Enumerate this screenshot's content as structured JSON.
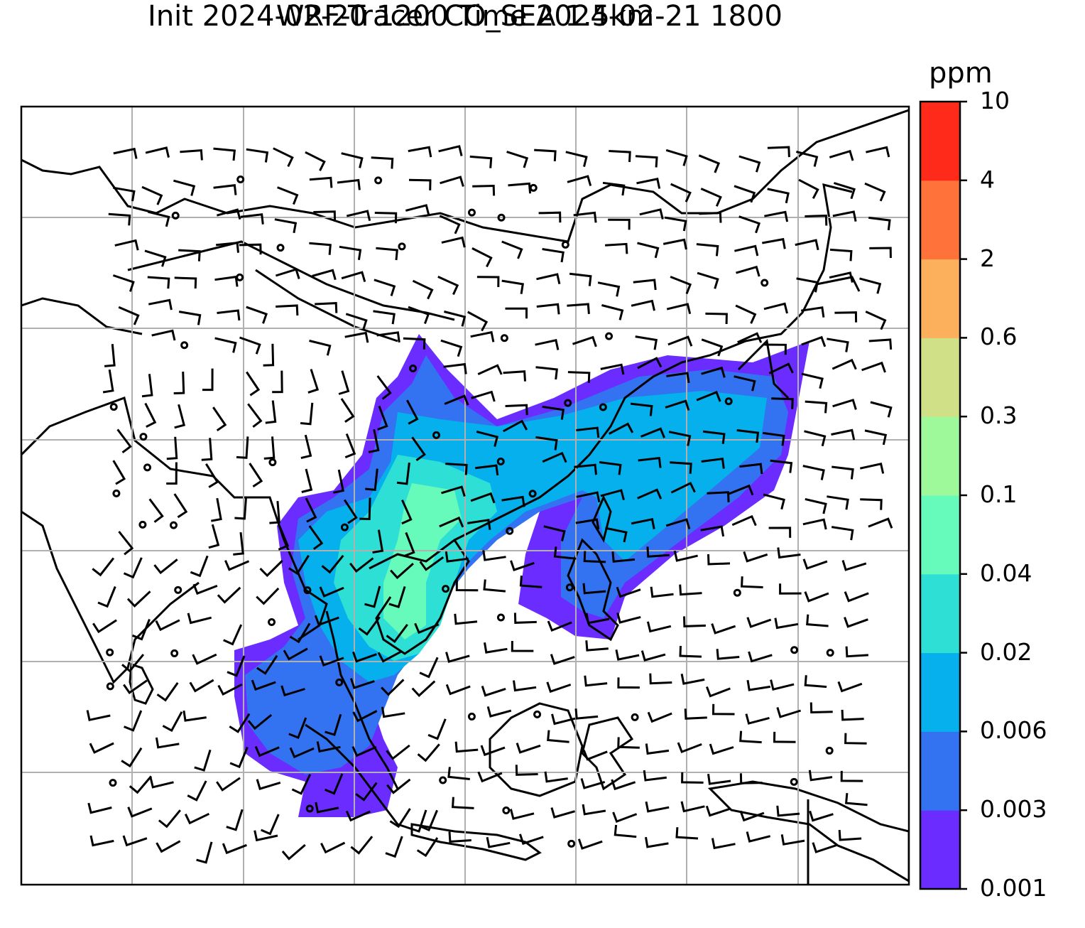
{
  "title": {
    "line1": "WRF-Tracer CO_SEA 1.5km",
    "line2": "Init 2024-02-20 1200 Time 2024-02-21 1800"
  },
  "colorbar": {
    "units": "ppm",
    "levels": [
      "0.001",
      "0.003",
      "0.006",
      "0.02",
      "0.04",
      "0.1",
      "0.3",
      "0.6",
      "2",
      "4",
      "10"
    ],
    "colors": [
      "#6a2cff",
      "#3373f2",
      "#06b0ed",
      "#2ddfd5",
      "#66fbbb",
      "#9ef99a",
      "#cfe086",
      "#fdb05c",
      "#ff733b",
      "#ff2a1a"
    ]
  },
  "map": {
    "region": "Southeast Asia",
    "gridlines": "on",
    "overlay": "wind barbs"
  }
}
